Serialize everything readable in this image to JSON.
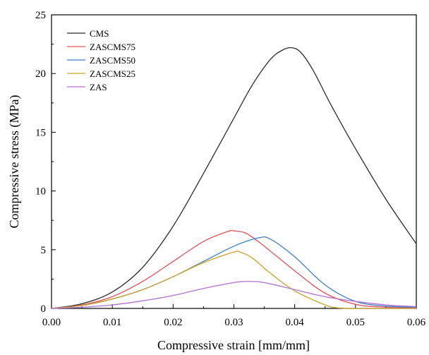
{
  "chart_data": {
    "type": "line",
    "title": "",
    "xlabel": "Compressive strain [mm/mm]",
    "ylabel": "Compressive stress (MPa)",
    "xlim": [
      0.0,
      0.06
    ],
    "ylim": [
      0,
      25
    ],
    "xticks": [
      0.0,
      0.01,
      0.02,
      0.03,
      0.04,
      0.05,
      0.06
    ],
    "xtick_labels": [
      "0.00",
      "0.01",
      "0.02",
      "0.03",
      "0.04",
      "0.05",
      "0.06"
    ],
    "yticks": [
      0,
      5,
      10,
      15,
      20,
      25
    ],
    "ytick_labels": [
      "0",
      "5",
      "10",
      "15",
      "20",
      "25"
    ],
    "grid": false,
    "legend_position": "top-left",
    "series": [
      {
        "name": "CMS",
        "color": "#2b2b2b",
        "x": [
          0.0,
          0.005,
          0.01,
          0.015,
          0.02,
          0.025,
          0.03,
          0.033,
          0.036,
          0.038,
          0.0395,
          0.041,
          0.043,
          0.046,
          0.05,
          0.055,
          0.06
        ],
        "y": [
          0.0,
          0.4,
          1.4,
          3.5,
          7.0,
          11.5,
          16.2,
          19.0,
          21.2,
          22.0,
          22.2,
          21.8,
          20.3,
          17.3,
          13.6,
          9.3,
          5.5
        ]
      },
      {
        "name": "ZASCMS75",
        "color": "#e0525a",
        "x": [
          0.0,
          0.005,
          0.01,
          0.015,
          0.02,
          0.025,
          0.029,
          0.03,
          0.032,
          0.035,
          0.04,
          0.045,
          0.05,
          0.055,
          0.06
        ],
        "y": [
          0.0,
          0.3,
          1.0,
          2.3,
          4.0,
          5.7,
          6.55,
          6.6,
          6.4,
          5.3,
          3.2,
          1.3,
          0.35,
          0.1,
          0.05
        ]
      },
      {
        "name": "ZASCMS50",
        "color": "#3a7dc9",
        "x": [
          0.0,
          0.005,
          0.01,
          0.015,
          0.02,
          0.025,
          0.03,
          0.034,
          0.036,
          0.04,
          0.045,
          0.05,
          0.055,
          0.06
        ],
        "y": [
          0.0,
          0.25,
          0.8,
          1.6,
          2.7,
          4.0,
          5.3,
          6.0,
          5.9,
          4.4,
          2.0,
          0.6,
          0.2,
          0.1
        ]
      },
      {
        "name": "ZASCMS25",
        "color": "#c9a227",
        "x": [
          0.0,
          0.005,
          0.01,
          0.015,
          0.02,
          0.025,
          0.03,
          0.031,
          0.033,
          0.036,
          0.04,
          0.045,
          0.047,
          0.05,
          0.055,
          0.06
        ],
        "y": [
          0.0,
          0.25,
          0.8,
          1.6,
          2.7,
          3.9,
          4.8,
          4.8,
          4.3,
          3.0,
          1.5,
          0.3,
          0.05,
          0.0,
          0.0,
          0.0
        ]
      },
      {
        "name": "ZAS",
        "color": "#b36fd0",
        "x": [
          0.0,
          0.005,
          0.01,
          0.015,
          0.02,
          0.025,
          0.03,
          0.0325,
          0.035,
          0.04,
          0.045,
          0.05,
          0.055,
          0.06
        ],
        "y": [
          0.0,
          0.1,
          0.3,
          0.65,
          1.1,
          1.7,
          2.2,
          2.3,
          2.2,
          1.6,
          1.0,
          0.6,
          0.3,
          0.15
        ]
      }
    ]
  }
}
